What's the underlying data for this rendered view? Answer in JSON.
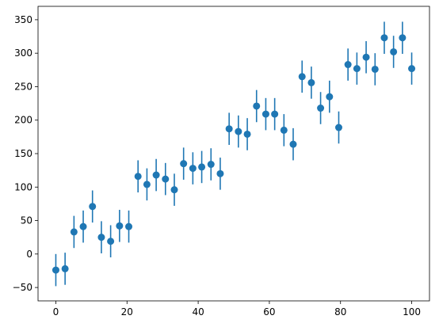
{
  "chart_data": {
    "type": "scatter",
    "title": "",
    "xlabel": "",
    "ylabel": "",
    "xlim": [
      -5,
      105
    ],
    "ylim": [
      -70,
      370
    ],
    "x_ticks": [
      0,
      20,
      40,
      60,
      80,
      100
    ],
    "y_ticks": [
      -50,
      0,
      50,
      100,
      150,
      200,
      250,
      300,
      350
    ],
    "x_tick_labels": [
      "0",
      "20",
      "40",
      "60",
      "80",
      "100"
    ],
    "y_tick_labels": [
      "−50",
      "0",
      "50",
      "100",
      "150",
      "200",
      "250",
      "300",
      "350"
    ],
    "grid": false,
    "legend": "none",
    "color": "#1f77b4",
    "series": [
      {
        "x": [
          0,
          2.6,
          5.1,
          7.7,
          10.3,
          12.8,
          15.4,
          17.9,
          20.5,
          23.1,
          25.6,
          28.2,
          30.8,
          33.3,
          35.9,
          38.5,
          41.0,
          43.6,
          46.2,
          48.7,
          51.3,
          53.8,
          56.4,
          59.0,
          61.5,
          64.1,
          66.7,
          69.2,
          71.8,
          74.4,
          76.9,
          79.5,
          82.1,
          84.6,
          87.2,
          89.7,
          92.3,
          94.9,
          97.4,
          100
        ],
        "y": [
          -24,
          -22,
          33,
          41,
          71,
          25,
          19,
          42,
          41,
          116,
          104,
          118,
          112,
          96,
          135,
          128,
          130,
          134,
          120,
          187,
          183,
          179,
          221,
          209,
          209,
          185,
          164,
          265,
          256,
          218,
          235,
          189,
          283,
          277,
          294,
          276,
          323,
          302,
          323,
          277
        ],
        "yerr": 24
      }
    ]
  }
}
